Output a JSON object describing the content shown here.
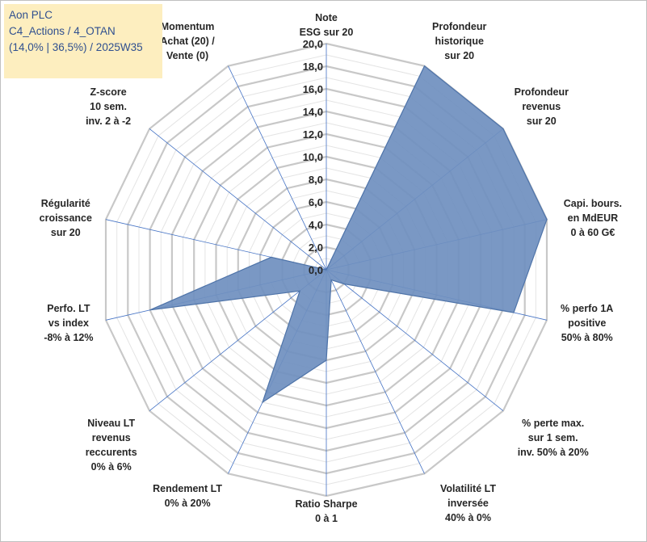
{
  "info_box": {
    "line1": "Aon PLC",
    "line2": "C4_Actions / 4_OTAN",
    "line3": "(14,0% | 36,5%) / 2025W35"
  },
  "chart_data": {
    "type": "radar",
    "title": "",
    "rmin": 0,
    "rmax": 20,
    "ticks": [
      "0,0",
      "2,0",
      "4,0",
      "6,0",
      "8,0",
      "10,0",
      "12,0",
      "14,0",
      "16,0",
      "18,0",
      "20,0"
    ],
    "tick_values": [
      0,
      2,
      4,
      6,
      8,
      10,
      12,
      14,
      16,
      18,
      20
    ],
    "minor_step": 1,
    "axes": [
      {
        "label": [
          "Note",
          "ESG sur 20"
        ],
        "value": 0
      },
      {
        "label": [
          "Profondeur",
          "historique",
          "sur 20"
        ],
        "value": 20
      },
      {
        "label": [
          "Profondeur",
          "revenus",
          "sur 20"
        ],
        "value": 20
      },
      {
        "label": [
          "Capi. bours.",
          "en MdEUR",
          "0 à 60 G€"
        ],
        "value": 20
      },
      {
        "label": [
          "% perfo 1A",
          "positive",
          "50% à 80%"
        ],
        "value": 17
      },
      {
        "label": [
          "% perte max.",
          "sur 1 sem.",
          "inv. 50% à 20%"
        ],
        "value": 2
      },
      {
        "label": [
          "Volatilité LT",
          "inversée",
          "40% à 0%"
        ],
        "value": 1
      },
      {
        "label": [
          "Ratio Sharpe",
          "0 à 1"
        ],
        "value": 8
      },
      {
        "label": [
          "Rendement LT",
          "0% à 20%"
        ],
        "value": 13
      },
      {
        "label": [
          "Niveau LT",
          "revenus",
          "reccurents",
          "0% à 6%"
        ],
        "value": 3
      },
      {
        "label": [
          "Perfo. LT",
          "vs index",
          "-8% à 12%"
        ],
        "value": 16
      },
      {
        "label": [
          "Régularité",
          "croissance",
          "sur 20"
        ],
        "value": 5
      },
      {
        "label": [
          "Z-score",
          "10 sem.",
          "inv. 2 à -2"
        ],
        "value": 0
      },
      {
        "label": [
          "Momentum",
          "Achat (20) /",
          "Vente (0)"
        ],
        "value": 0
      }
    ],
    "colors": {
      "fill": "#6f8fbf",
      "stroke": "#4f74a9",
      "grid_major": "#c8c8c8",
      "grid_minor": "#e4e4e4",
      "spoke": "#4472c4"
    },
    "grid": true,
    "legend": "none"
  }
}
